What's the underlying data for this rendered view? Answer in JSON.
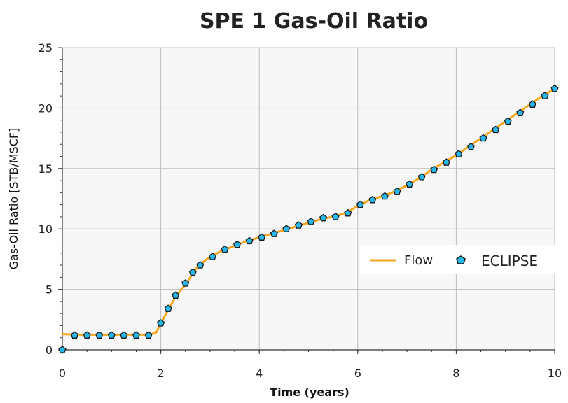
{
  "chart_data": {
    "type": "line",
    "title": "SPE 1 Gas-Oil Ratio",
    "xlabel": "Time (years)",
    "ylabel": "Gas-Oil Ratio [STB/MSCF]",
    "xlim": [
      0,
      10
    ],
    "ylim": [
      0,
      25
    ],
    "xticks": [
      0,
      2,
      4,
      6,
      8,
      10
    ],
    "yticks": [
      0,
      5,
      10,
      15,
      20,
      25
    ],
    "grid": true,
    "legend_position": "right",
    "series": [
      {
        "name": "Flow",
        "style": "line",
        "color": "#f5a623",
        "x": [
          0,
          0.25,
          0.5,
          0.75,
          1.0,
          1.25,
          1.5,
          1.75,
          1.9,
          2.0,
          2.15,
          2.3,
          2.5,
          2.75,
          3.0,
          3.25,
          3.5,
          3.75,
          4.0,
          4.25,
          4.5,
          4.75,
          5.0,
          5.25,
          5.5,
          5.75,
          6.0,
          6.25,
          6.5,
          6.75,
          7.0,
          7.25,
          7.5,
          7.75,
          8.0,
          8.25,
          8.5,
          8.75,
          9.0,
          9.25,
          9.5,
          9.75,
          10.0
        ],
        "y": [
          1.3,
          1.25,
          1.25,
          1.25,
          1.25,
          1.25,
          1.25,
          1.25,
          1.4,
          2.2,
          3.3,
          4.4,
          5.4,
          6.9,
          7.7,
          8.2,
          8.6,
          9.0,
          9.3,
          9.6,
          9.9,
          10.2,
          10.5,
          10.8,
          11.0,
          11.3,
          11.9,
          12.4,
          12.7,
          13.1,
          13.6,
          14.2,
          14.9,
          15.5,
          16.1,
          16.8,
          17.5,
          18.2,
          18.9,
          19.6,
          20.3,
          21.0,
          21.6
        ]
      },
      {
        "name": "ECLIPSE",
        "style": "markers",
        "color": "#29b6e8",
        "x": [
          0,
          0.25,
          0.5,
          0.75,
          1.0,
          1.25,
          1.5,
          1.75,
          2.0,
          2.15,
          2.3,
          2.5,
          2.65,
          2.8,
          3.05,
          3.3,
          3.55,
          3.8,
          4.05,
          4.3,
          4.55,
          4.8,
          5.05,
          5.3,
          5.55,
          5.8,
          6.05,
          6.3,
          6.55,
          6.8,
          7.05,
          7.3,
          7.55,
          7.8,
          8.05,
          8.3,
          8.55,
          8.8,
          9.05,
          9.3,
          9.55,
          9.8,
          10.0
        ],
        "y": [
          0.0,
          1.2,
          1.2,
          1.2,
          1.2,
          1.2,
          1.2,
          1.2,
          2.2,
          3.4,
          4.5,
          5.5,
          6.4,
          7.0,
          7.7,
          8.3,
          8.7,
          9.0,
          9.3,
          9.6,
          10.0,
          10.3,
          10.6,
          10.9,
          11.0,
          11.3,
          12.0,
          12.4,
          12.7,
          13.1,
          13.7,
          14.3,
          14.9,
          15.5,
          16.2,
          16.8,
          17.5,
          18.2,
          18.9,
          19.6,
          20.3,
          21.0,
          21.6
        ]
      }
    ]
  }
}
